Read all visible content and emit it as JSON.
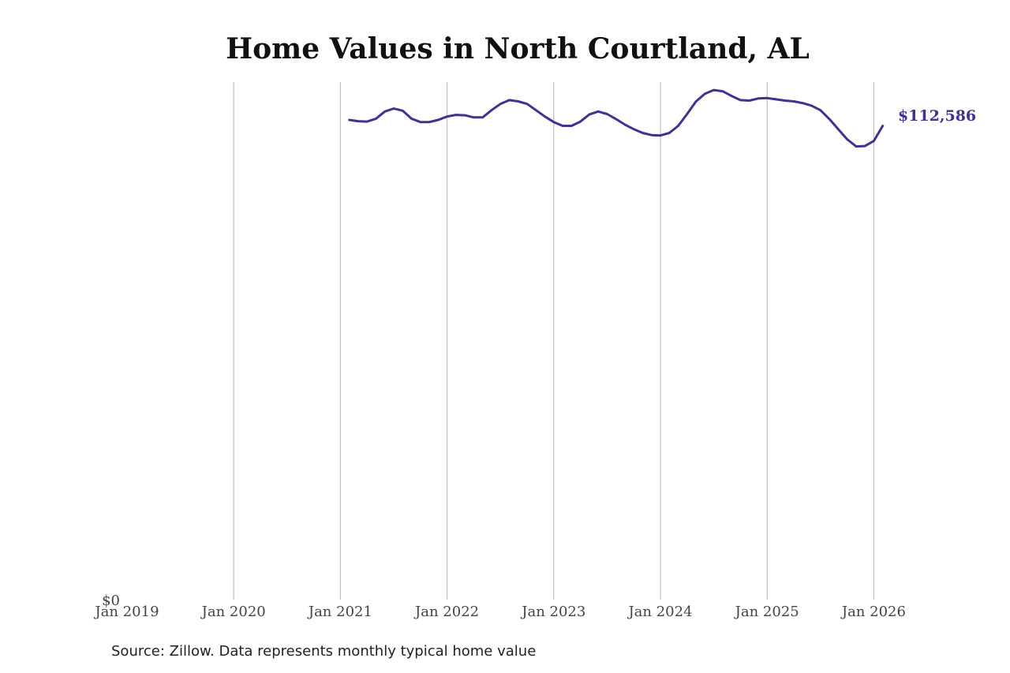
{
  "chart_data": {
    "type": "line",
    "title": "Home Values in North Courtland, AL",
    "xlabel": "",
    "ylabel": "",
    "x_ticks": [
      "Jan 2019",
      "Jan 2020",
      "Jan 2021",
      "Jan 2022",
      "Jan 2023",
      "Jan 2024",
      "Jan 2025",
      "Jan 2026"
    ],
    "y_ticks": [
      "$0"
    ],
    "x_range": [
      "2019-01",
      "2026-02"
    ],
    "y_range": [
      0,
      123000
    ],
    "grid": "vertical",
    "legend": "none",
    "line_color": "#3b3591",
    "end_label": "$112,586",
    "series": [
      {
        "x": [
          "2021-02",
          "2021-03",
          "2021-04",
          "2021-05",
          "2021-06",
          "2021-07",
          "2021-08",
          "2021-09",
          "2021-10",
          "2021-11",
          "2021-12",
          "2022-01",
          "2022-02",
          "2022-03",
          "2022-04",
          "2022-05",
          "2022-06",
          "2022-07",
          "2022-08",
          "2022-09",
          "2022-10",
          "2022-11",
          "2022-12",
          "2023-01",
          "2023-02",
          "2023-03",
          "2023-04",
          "2023-05",
          "2023-06",
          "2023-07",
          "2023-08",
          "2023-09",
          "2023-10",
          "2023-11",
          "2023-12",
          "2024-01",
          "2024-02",
          "2024-03",
          "2024-04",
          "2024-05",
          "2024-06",
          "2024-07",
          "2024-08",
          "2024-09",
          "2024-10",
          "2024-11",
          "2024-12",
          "2025-01",
          "2025-02",
          "2025-03",
          "2025-04",
          "2025-05",
          "2025-06",
          "2025-07",
          "2025-08",
          "2025-09",
          "2025-10",
          "2025-11",
          "2025-12",
          "2026-01",
          "2026-02"
        ],
        "values": [
          114000,
          113700,
          113600,
          114300,
          116000,
          116700,
          116200,
          114300,
          113500,
          113500,
          114000,
          114800,
          115200,
          115100,
          114600,
          114600,
          116300,
          117800,
          118700,
          118400,
          117800,
          116300,
          114800,
          113500,
          112600,
          112600,
          113600,
          115300,
          116000,
          115400,
          114200,
          112900,
          111800,
          110900,
          110400,
          110300,
          110900,
          112600,
          115400,
          118400,
          120200,
          121100,
          120800,
          119700,
          118700,
          118600,
          119100,
          119200,
          118900,
          118600,
          118400,
          118000,
          117400,
          116300,
          114200,
          111800,
          109400,
          107700,
          107800,
          109000,
          112586
        ]
      }
    ]
  },
  "source_note": "Source: Zillow. Data represents monthly typical home value"
}
